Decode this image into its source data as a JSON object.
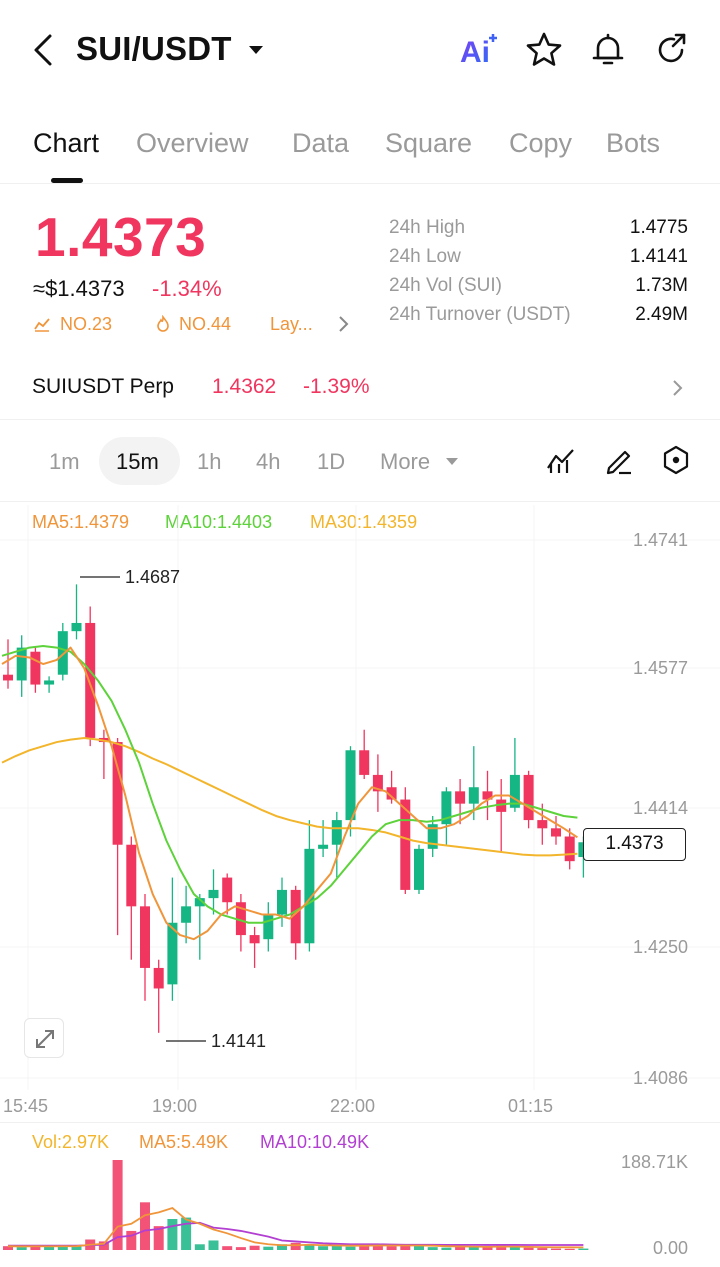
{
  "header": {
    "pair": "SUI/USDT",
    "icons": [
      "back-icon",
      "ai-icon",
      "star-icon",
      "bell-icon",
      "share-icon"
    ],
    "ai_label": "Ai"
  },
  "tabs": [
    "Chart",
    "Overview",
    "Data",
    "Square",
    "Copy",
    "Bots"
  ],
  "ticker": {
    "last_price": "1.4373",
    "usd_price": "≈$1.4373",
    "change_pct": "-1.34%",
    "rank1": "NO.23",
    "rank2": "NO.44",
    "rank3": "Lay..."
  },
  "stats": [
    {
      "label": "24h  High",
      "value": "1.4775"
    },
    {
      "label": "24h  Low",
      "value": "1.4141"
    },
    {
      "label": "24h  Vol (SUI)",
      "value": "1.73M"
    },
    {
      "label": "24h  Turnover (USDT)",
      "value": "2.49M"
    }
  ],
  "perp": {
    "name": "SUIUSDT Perp",
    "price": "1.4362",
    "change": "-1.39%"
  },
  "intervals": [
    "1m",
    "15m",
    "1h",
    "4h",
    "1D",
    "More"
  ],
  "selected_interval": "15m",
  "ma_legend": {
    "ma5": "MA5:1.4379",
    "ma10": "MA10:1.4403",
    "ma30": "MA30:1.4359"
  },
  "price_axis": [
    "1.4741",
    "1.4577",
    "1.4414",
    "1.4250",
    "1.4086"
  ],
  "time_axis": [
    "15:45",
    "19:00",
    "22:00",
    "01:15"
  ],
  "annotations": {
    "high": "1.4687",
    "low": "1.4141",
    "last": "1.4373"
  },
  "volume": {
    "vol": "Vol:2.97K",
    "ma5": "MA5:5.49K",
    "ma10": "MA10:10.49K",
    "axis_top": "188.71K",
    "axis_bottom": "0.00"
  },
  "colors": {
    "up": "#16b584",
    "down": "#f0355f",
    "ma5": "#f0953a",
    "ma10": "#5dd23a",
    "ma30": "#f2b52b",
    "vol_ma10": "#b23fd1"
  },
  "chart_data": {
    "type": "candlestick",
    "interval": "15m",
    "ylim": [
      1.4086,
      1.4741
    ],
    "candles": [
      {
        "o": 1.4577,
        "h": 1.462,
        "l": 1.456,
        "c": 1.457
      },
      {
        "o": 1.457,
        "h": 1.4625,
        "l": 1.455,
        "c": 1.461
      },
      {
        "o": 1.4605,
        "h": 1.461,
        "l": 1.4555,
        "c": 1.4565
      },
      {
        "o": 1.4565,
        "h": 1.4575,
        "l": 1.4555,
        "c": 1.457
      },
      {
        "o": 1.4577,
        "h": 1.464,
        "l": 1.457,
        "c": 1.463
      },
      {
        "o": 1.463,
        "h": 1.4687,
        "l": 1.462,
        "c": 1.464
      },
      {
        "o": 1.464,
        "h": 1.466,
        "l": 1.449,
        "c": 1.45
      },
      {
        "o": 1.45,
        "h": 1.451,
        "l": 1.445,
        "c": 1.4495
      },
      {
        "o": 1.4495,
        "h": 1.45,
        "l": 1.426,
        "c": 1.437
      },
      {
        "o": 1.437,
        "h": 1.438,
        "l": 1.423,
        "c": 1.4295
      },
      {
        "o": 1.4295,
        "h": 1.431,
        "l": 1.418,
        "c": 1.422
      },
      {
        "o": 1.422,
        "h": 1.423,
        "l": 1.4141,
        "c": 1.4195
      },
      {
        "o": 1.42,
        "h": 1.433,
        "l": 1.418,
        "c": 1.4275
      },
      {
        "o": 1.4275,
        "h": 1.432,
        "l": 1.425,
        "c": 1.4295
      },
      {
        "o": 1.4295,
        "h": 1.431,
        "l": 1.423,
        "c": 1.4305
      },
      {
        "o": 1.4305,
        "h": 1.434,
        "l": 1.4285,
        "c": 1.4315
      },
      {
        "o": 1.433,
        "h": 1.4335,
        "l": 1.4285,
        "c": 1.43
      },
      {
        "o": 1.43,
        "h": 1.431,
        "l": 1.424,
        "c": 1.426
      },
      {
        "o": 1.426,
        "h": 1.427,
        "l": 1.422,
        "c": 1.425
      },
      {
        "o": 1.4255,
        "h": 1.43,
        "l": 1.424,
        "c": 1.4285
      },
      {
        "o": 1.4285,
        "h": 1.433,
        "l": 1.427,
        "c": 1.4315
      },
      {
        "o": 1.4315,
        "h": 1.432,
        "l": 1.423,
        "c": 1.425
      },
      {
        "o": 1.425,
        "h": 1.44,
        "l": 1.424,
        "c": 1.4365
      },
      {
        "o": 1.4365,
        "h": 1.44,
        "l": 1.4355,
        "c": 1.437
      },
      {
        "o": 1.437,
        "h": 1.441,
        "l": 1.433,
        "c": 1.44
      },
      {
        "o": 1.44,
        "h": 1.449,
        "l": 1.438,
        "c": 1.4485
      },
      {
        "o": 1.4485,
        "h": 1.451,
        "l": 1.445,
        "c": 1.4455
      },
      {
        "o": 1.4455,
        "h": 1.448,
        "l": 1.441,
        "c": 1.4435
      },
      {
        "o": 1.444,
        "h": 1.446,
        "l": 1.442,
        "c": 1.4425
      },
      {
        "o": 1.4425,
        "h": 1.444,
        "l": 1.431,
        "c": 1.4315
      },
      {
        "o": 1.4315,
        "h": 1.437,
        "l": 1.431,
        "c": 1.4365
      },
      {
        "o": 1.4365,
        "h": 1.4405,
        "l": 1.4355,
        "c": 1.4395
      },
      {
        "o": 1.4395,
        "h": 1.444,
        "l": 1.437,
        "c": 1.4435
      },
      {
        "o": 1.4435,
        "h": 1.445,
        "l": 1.4395,
        "c": 1.442
      },
      {
        "o": 1.442,
        "h": 1.449,
        "l": 1.44,
        "c": 1.444
      },
      {
        "o": 1.4435,
        "h": 1.446,
        "l": 1.44,
        "c": 1.4425
      },
      {
        "o": 1.4425,
        "h": 1.445,
        "l": 1.436,
        "c": 1.441
      },
      {
        "o": 1.4415,
        "h": 1.45,
        "l": 1.441,
        "c": 1.4455
      },
      {
        "o": 1.4455,
        "h": 1.446,
        "l": 1.439,
        "c": 1.44
      },
      {
        "o": 1.44,
        "h": 1.442,
        "l": 1.437,
        "c": 1.439
      },
      {
        "o": 1.439,
        "h": 1.4405,
        "l": 1.437,
        "c": 1.438
      },
      {
        "o": 1.438,
        "h": 1.439,
        "l": 1.434,
        "c": 1.435
      },
      {
        "o": 1.4355,
        "h": 1.438,
        "l": 1.433,
        "c": 1.4373
      }
    ],
    "ma5": [
      1.459,
      1.46,
      1.4598,
      1.459,
      1.4595,
      1.461,
      1.4585,
      1.454,
      1.449,
      1.443,
      1.436,
      1.431,
      1.4275,
      1.426,
      1.4255,
      1.4265,
      1.4285,
      1.4295,
      1.429,
      1.4285,
      1.4285,
      1.428,
      1.4295,
      1.4315,
      1.4335,
      1.438,
      1.442,
      1.444,
      1.4435,
      1.442,
      1.4405,
      1.439,
      1.439,
      1.4395,
      1.4405,
      1.442,
      1.443,
      1.443,
      1.442,
      1.441,
      1.44,
      1.439,
      1.4379
    ],
    "ma10": [
      1.46,
      1.4605,
      1.461,
      1.4612,
      1.461,
      1.4605,
      1.459,
      1.457,
      1.4545,
      1.451,
      1.447,
      1.442,
      1.4375,
      1.434,
      1.431,
      1.4295,
      1.4285,
      1.428,
      1.4275,
      1.4275,
      1.428,
      1.4285,
      1.4295,
      1.4305,
      1.432,
      1.434,
      1.436,
      1.438,
      1.4395,
      1.44,
      1.44,
      1.4398,
      1.44,
      1.4405,
      1.441,
      1.4415,
      1.4418,
      1.442,
      1.442,
      1.4415,
      1.441,
      1.4405,
      1.4403
    ],
    "ma30": [
      1.447,
      1.4478,
      1.4485,
      1.449,
      1.4495,
      1.4498,
      1.45,
      1.4498,
      1.4495,
      1.449,
      1.4483,
      1.4475,
      1.4468,
      1.446,
      1.4452,
      1.4444,
      1.4436,
      1.4428,
      1.442,
      1.4412,
      1.4405,
      1.44,
      1.4396,
      1.4392,
      1.439,
      1.439,
      1.439,
      1.4388,
      1.4385,
      1.438,
      1.4375,
      1.4372,
      1.437,
      1.4368,
      1.4366,
      1.4364,
      1.4362,
      1.436,
      1.4358,
      1.4357,
      1.4357,
      1.4358,
      1.4359
    ],
    "volume": {
      "ylim": [
        0,
        188.71
      ],
      "unit": "K",
      "values": [
        8,
        6,
        9,
        7,
        8,
        10,
        22,
        18,
        188.71,
        40,
        100,
        50,
        65,
        68,
        12,
        20,
        8,
        6,
        9,
        7,
        12,
        15,
        10,
        8,
        9,
        7,
        10,
        12,
        8,
        9,
        10,
        6,
        5,
        7,
        8,
        6,
        9,
        7,
        5,
        4,
        3,
        2.5,
        2.97
      ],
      "ma5": [
        8,
        7.5,
        7.8,
        7.6,
        7.8,
        8,
        11,
        13,
        49,
        55,
        73,
        79,
        88,
        64,
        55,
        43,
        35,
        25,
        16,
        12,
        10,
        10,
        11,
        10,
        9.5,
        9,
        9,
        9.5,
        9.5,
        9.5,
        9.5,
        9,
        8,
        7.5,
        7,
        6.5,
        7,
        7,
        6.5,
        6,
        5.8,
        5.6,
        5.49
      ],
      "ma10": [
        9,
        9,
        9,
        9,
        9,
        9,
        10,
        11,
        27,
        30,
        41,
        44,
        50,
        55,
        57,
        47,
        44,
        40,
        34,
        28,
        20,
        18,
        16,
        14,
        13,
        12,
        12,
        12,
        11.5,
        11,
        11,
        11,
        10.8,
        10.8,
        10.7,
        10.6,
        10.6,
        10.6,
        10.5,
        10.5,
        10.5,
        10.5,
        10.49
      ]
    }
  }
}
